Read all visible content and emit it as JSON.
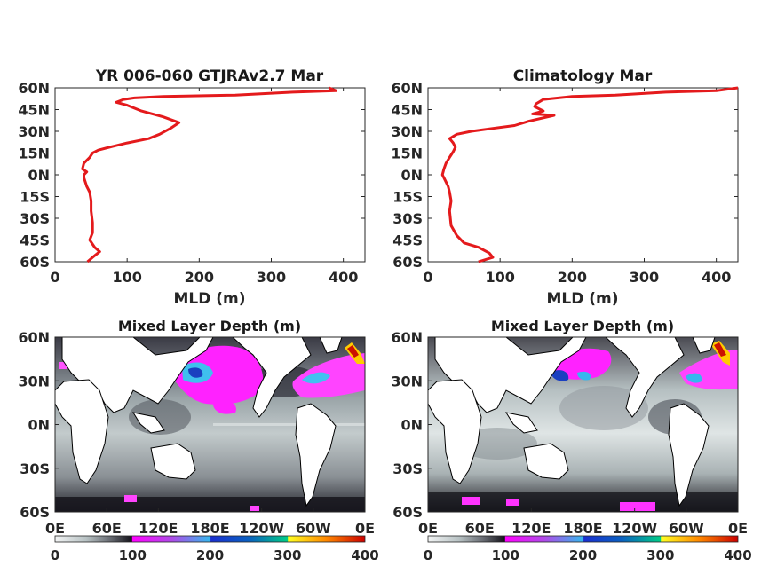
{
  "chart_data": [
    {
      "type": "line",
      "title": "YR 006-060 GTJRAv2.7 Mar",
      "xlabel": "MLD (m)",
      "ylabel": "",
      "xlim": [
        0,
        430
      ],
      "xticks": [
        "0",
        "100",
        "200",
        "300",
        "400"
      ],
      "ylim": [
        -60,
        60
      ],
      "yticks": [
        "60N",
        "45N",
        "30N",
        "15N",
        "0N",
        "15S",
        "30S",
        "45S",
        "60S"
      ],
      "line_color": "#e41a1c",
      "series": [
        {
          "x": [
            45,
            52,
            62,
            55,
            48,
            52,
            52,
            50,
            50,
            48,
            44,
            42,
            40,
            40,
            44,
            38,
            40,
            48,
            52,
            60,
            75,
            100,
            130,
            145,
            160,
            172,
            150,
            120,
            100,
            85,
            95,
            110,
            150,
            250,
            330,
            390,
            380
          ],
          "y": [
            -60,
            -57,
            -53,
            -50,
            -45,
            -40,
            -33,
            -25,
            -18,
            -12,
            -8,
            -5,
            -2,
            0,
            2,
            4,
            8,
            12,
            15,
            17,
            19,
            22,
            25,
            28,
            32,
            36,
            40,
            44,
            48,
            50,
            52,
            53,
            54,
            55,
            57,
            58,
            60
          ]
        }
      ]
    },
    {
      "type": "line",
      "title": "Climatology Mar",
      "xlabel": "MLD (m)",
      "ylabel": "",
      "xlim": [
        0,
        430
      ],
      "xticks": [
        "0",
        "100",
        "200",
        "300",
        "400"
      ],
      "ylim": [
        -60,
        60
      ],
      "yticks": [
        "60N",
        "45N",
        "30N",
        "15N",
        "0N",
        "15S",
        "30S",
        "45S",
        "60S"
      ],
      "line_color": "#e41a1c",
      "series": [
        {
          "x": [
            70,
            90,
            85,
            70,
            50,
            40,
            32,
            30,
            32,
            30,
            28,
            25,
            22,
            20,
            22,
            25,
            30,
            35,
            38,
            35,
            30,
            40,
            60,
            90,
            120,
            140,
            175,
            145,
            160,
            148,
            150,
            160,
            200,
            260,
            330,
            400,
            430
          ],
          "y": [
            -60,
            -57,
            -54,
            -50,
            -47,
            -42,
            -35,
            -25,
            -18,
            -12,
            -8,
            -5,
            -2,
            0,
            4,
            8,
            12,
            16,
            19,
            22,
            25,
            28,
            30,
            32,
            34,
            37,
            41,
            42,
            44,
            47,
            49,
            52,
            54,
            55,
            57,
            58,
            60
          ]
        }
      ]
    },
    {
      "type": "heatmap",
      "title": "Mixed Layer Depth (m)",
      "xticks": [
        "0E",
        "60E",
        "120E",
        "180E",
        "120W",
        "60W",
        "0E"
      ],
      "yticks": [
        "60N",
        "30N",
        "0N",
        "30S",
        "60S"
      ],
      "colorbar": {
        "min": 0,
        "max": 400,
        "ticks": [
          "0",
          "100",
          "200",
          "300",
          "400"
        ]
      }
    },
    {
      "type": "heatmap",
      "title": "Mixed Layer Depth (m)",
      "xticks": [
        "0E",
        "60E",
        "120E",
        "180E",
        "120W",
        "60W",
        "0E"
      ],
      "yticks": [
        "60N",
        "30N",
        "0N",
        "30S",
        "60S"
      ],
      "colorbar": {
        "min": 0,
        "max": 400,
        "ticks": [
          "0",
          "100",
          "200",
          "300",
          "400"
        ]
      }
    }
  ],
  "colormap": [
    {
      "v": 0,
      "c": "#f2f4f4"
    },
    {
      "v": 40,
      "c": "#b8c2c4"
    },
    {
      "v": 70,
      "c": "#6b6f76"
    },
    {
      "v": 99,
      "c": "#14121a"
    },
    {
      "v": 100,
      "c": "#ff00ff"
    },
    {
      "v": 150,
      "c": "#b04ae8"
    },
    {
      "v": 200,
      "c": "#36b7ee"
    },
    {
      "v": 201,
      "c": "#1a2fd0"
    },
    {
      "v": 250,
      "c": "#0a60c0"
    },
    {
      "v": 300,
      "c": "#00cc88"
    },
    {
      "v": 301,
      "c": "#ffff22"
    },
    {
      "v": 350,
      "c": "#ff8800"
    },
    {
      "v": 400,
      "c": "#cc0000"
    }
  ]
}
